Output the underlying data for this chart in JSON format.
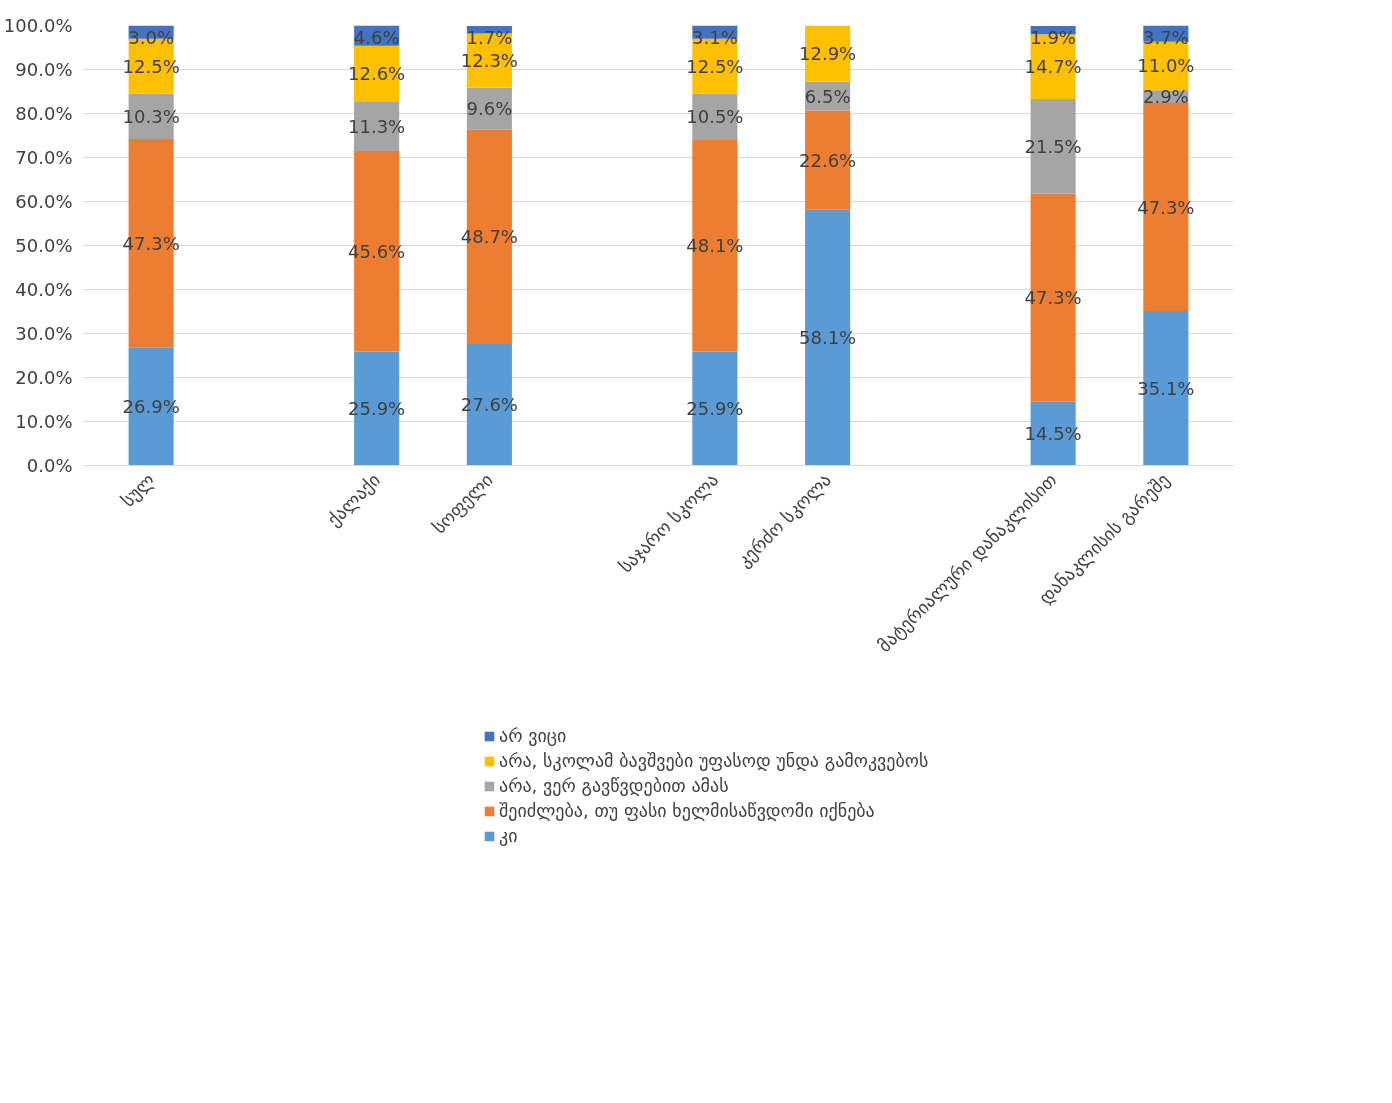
{
  "chart_data": {
    "type": "bar",
    "stacked": true,
    "grid": "y",
    "legend": "bottom",
    "categories": [
      "სულ",
      null,
      "ქალაქი",
      "სოფელი",
      null,
      "საჯარო სკოლა",
      "კერძო სკოლა",
      null,
      "მატერიალური დანაკლისით",
      "დანაკლისის გარეშე"
    ],
    "ylim": [
      0,
      100
    ],
    "yticks": [
      {
        "value": 0,
        "label": "0.0%"
      },
      {
        "value": 10,
        "label": "10.0%"
      },
      {
        "value": 20,
        "label": "20.0%"
      },
      {
        "value": 30,
        "label": "30.0%"
      },
      {
        "value": 40,
        "label": "40.0%"
      },
      {
        "value": 50,
        "label": "50.0%"
      },
      {
        "value": 60,
        "label": "60.0%"
      },
      {
        "value": 70,
        "label": "70.0%"
      },
      {
        "value": 80,
        "label": "80.0%"
      },
      {
        "value": 90,
        "label": "90.0%"
      },
      {
        "value": 100,
        "label": "100.0%"
      }
    ],
    "series": [
      {
        "name": "კი",
        "color": "#5b9bd5",
        "values": [
          26.9,
          null,
          25.9,
          27.6,
          null,
          25.9,
          58.1,
          null,
          14.5,
          35.1
        ],
        "value_labels": [
          "26.9%",
          null,
          "25.9%",
          "27.6%",
          null,
          "25.9%",
          "58.1%",
          null,
          "14.5%",
          "35.1%"
        ]
      },
      {
        "name": "შეიძლება, თუ ფასი ხელმისაწვდომი იქნება",
        "color": "#ed7d31",
        "values": [
          47.3,
          null,
          45.6,
          48.7,
          null,
          48.1,
          22.6,
          null,
          47.3,
          47.3
        ],
        "value_labels": [
          "47.3%",
          null,
          "45.6%",
          "48.7%",
          null,
          "48.1%",
          "22.6%",
          null,
          "47.3%",
          "47.3%"
        ]
      },
      {
        "name": "არა, ვერ გავწვდებით ამას",
        "color": "#a5a5a5",
        "values": [
          10.3,
          null,
          11.3,
          9.6,
          null,
          10.5,
          6.5,
          null,
          21.5,
          2.9
        ],
        "value_labels": [
          "10.3%",
          null,
          "11.3%",
          "9.6%",
          null,
          "10.5%",
          "6.5%",
          null,
          "21.5%",
          "2.9%"
        ]
      },
      {
        "name": "არა, სკოლამ ბავშვები უფასოდ უნდა გამოკვებოს",
        "color": "#ffc000",
        "values": [
          12.5,
          null,
          12.6,
          12.3,
          null,
          12.5,
          12.9,
          null,
          14.7,
          11.0
        ],
        "value_labels": [
          "12.5%",
          null,
          "12.6%",
          "12.3%",
          null,
          "12.5%",
          "12.9%",
          null,
          "14.7%",
          "11.0%"
        ]
      },
      {
        "name": "არ ვიცი",
        "color": "#4472c4",
        "values": [
          3.0,
          null,
          4.6,
          1.7,
          null,
          3.1,
          null,
          null,
          1.9,
          3.7
        ],
        "value_labels": [
          "3.0%",
          null,
          "4.6%",
          "1.7%",
          null,
          "3.1%",
          null,
          null,
          "1.9%",
          "3.7%"
        ]
      }
    ]
  }
}
